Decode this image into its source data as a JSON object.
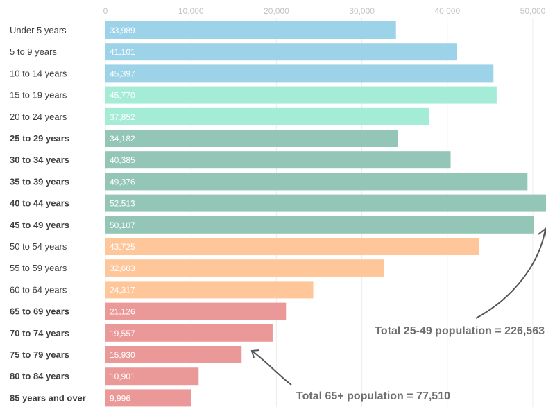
{
  "chart_data": {
    "type": "bar",
    "orientation": "horizontal",
    "xlim": [
      0,
      52000
    ],
    "ticks": [
      0,
      10000,
      20000,
      30000,
      40000,
      50000
    ],
    "tick_labels": [
      "0",
      "10,000",
      "20,000",
      "30,000",
      "40,000",
      "50,000"
    ],
    "grid": true,
    "categories": [
      "Under 5 years",
      "5 to 9 years",
      "10 to 14 years",
      "15 to 19 years",
      "20 to 24 years",
      "25 to 29 years",
      "30 to 34 years",
      "35 to 39 years",
      "40 to 44 years",
      "45 to 49 years",
      "50 to 54 years",
      "55 to 59 years",
      "60 to 64 years",
      "65 to 69 years",
      "70 to 74 years",
      "75 to 79 years",
      "80 to 84 years",
      "85 years and over"
    ],
    "values": [
      33989,
      41101,
      45397,
      45770,
      37852,
      34182,
      40385,
      49376,
      52513,
      50107,
      43725,
      32603,
      24317,
      21126,
      19557,
      15930,
      10901,
      9996
    ],
    "value_labels": [
      "33,989",
      "41,101",
      "45,397",
      "45,770",
      "37,852",
      "34,182",
      "40,385",
      "49,376",
      "52,513",
      "50,107",
      "43,725",
      "32,603",
      "24,317",
      "21,126",
      "19,557",
      "15,930",
      "10,901",
      "9,996"
    ],
    "groups": [
      {
        "color": "#9dd3e8",
        "from": 0,
        "to": 2,
        "bold_labels": false
      },
      {
        "color": "#a5ecd7",
        "from": 3,
        "to": 4,
        "bold_labels": false
      },
      {
        "color": "#93c6b6",
        "from": 5,
        "to": 9,
        "bold_labels": true
      },
      {
        "color": "#ffc69a",
        "from": 10,
        "to": 12,
        "bold_labels": false
      },
      {
        "color": "#eb9998",
        "from": 13,
        "to": 17,
        "bold_labels": true
      }
    ],
    "annotations": [
      {
        "text": "Total 25-49 population = 226,563",
        "points_to_category": "45 to 49 years"
      },
      {
        "text": "Total 65+ population = 77,510",
        "points_to_category": "75 to 79 years"
      }
    ]
  }
}
